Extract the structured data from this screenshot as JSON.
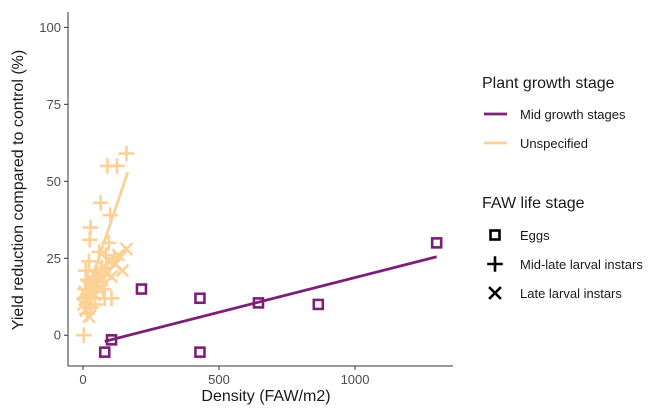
{
  "chart_data": {
    "type": "scatter",
    "xlabel": "Density (FAW/m2)",
    "ylabel": "Yield reduction compared to control (%)",
    "xlim": [
      -55,
      1360
    ],
    "ylim": [
      -10,
      105
    ],
    "x_ticks": [
      0,
      500,
      1000
    ],
    "y_ticks": [
      0,
      25,
      50,
      75,
      100
    ],
    "grid": false,
    "legend_placement": "right",
    "colors": {
      "mid_growth": "#7b1f78",
      "unspecified": "#fdd095"
    },
    "legends": {
      "color": {
        "title": "Plant growth stage",
        "entries": [
          {
            "key": "mid_growth",
            "label": "Mid growth stages"
          },
          {
            "key": "unspecified",
            "label": "Unspecified"
          }
        ]
      },
      "shape": {
        "title": "FAW life stage",
        "entries": [
          {
            "key": "square",
            "label": "Eggs"
          },
          {
            "key": "plus",
            "label": "Mid-late larval instars"
          },
          {
            "key": "cross",
            "label": "Late larval instars"
          }
        ]
      }
    },
    "series": [
      {
        "color_key": "mid_growth",
        "shape": "square",
        "points": [
          {
            "x": 80,
            "y": -5.5
          },
          {
            "x": 105,
            "y": -1.5
          },
          {
            "x": 215,
            "y": 15
          },
          {
            "x": 430,
            "y": 12
          },
          {
            "x": 430,
            "y": -5.5
          },
          {
            "x": 645,
            "y": 10.5
          },
          {
            "x": 865,
            "y": 10
          },
          {
            "x": 1300,
            "y": 30
          }
        ],
        "trend": {
          "x": [
            80,
            1300
          ],
          "y": [
            -2,
            25.5
          ]
        }
      },
      {
        "color_key": "unspecified",
        "shape": "plus",
        "points": [
          {
            "x": 3,
            "y": 0
          },
          {
            "x": 5,
            "y": 12
          },
          {
            "x": 8,
            "y": 15
          },
          {
            "x": 10,
            "y": 21
          },
          {
            "x": 12,
            "y": 10
          },
          {
            "x": 15,
            "y": 7
          },
          {
            "x": 18,
            "y": 18
          },
          {
            "x": 20,
            "y": 13
          },
          {
            "x": 22,
            "y": 24
          },
          {
            "x": 25,
            "y": 31
          },
          {
            "x": 28,
            "y": 35
          },
          {
            "x": 30,
            "y": 9
          },
          {
            "x": 35,
            "y": 15
          },
          {
            "x": 40,
            "y": 19
          },
          {
            "x": 45,
            "y": 10
          },
          {
            "x": 50,
            "y": 21
          },
          {
            "x": 55,
            "y": 16
          },
          {
            "x": 60,
            "y": 27
          },
          {
            "x": 65,
            "y": 43
          },
          {
            "x": 70,
            "y": 22
          },
          {
            "x": 75,
            "y": 15
          },
          {
            "x": 80,
            "y": 12
          },
          {
            "x": 85,
            "y": 26
          },
          {
            "x": 90,
            "y": 55
          },
          {
            "x": 95,
            "y": 30
          },
          {
            "x": 100,
            "y": 39
          },
          {
            "x": 105,
            "y": 12
          },
          {
            "x": 115,
            "y": 25
          },
          {
            "x": 125,
            "y": 55
          },
          {
            "x": 160,
            "y": 59
          }
        ],
        "trend": {
          "x": [
            0,
            165
          ],
          "y": [
            10,
            53
          ]
        }
      },
      {
        "color_key": "unspecified",
        "shape": "cross",
        "points": [
          {
            "x": 2,
            "y": 10
          },
          {
            "x": 6,
            "y": 14
          },
          {
            "x": 10,
            "y": 8
          },
          {
            "x": 14,
            "y": 12
          },
          {
            "x": 18,
            "y": 16
          },
          {
            "x": 22,
            "y": 6
          },
          {
            "x": 26,
            "y": 11
          },
          {
            "x": 32,
            "y": 14
          },
          {
            "x": 38,
            "y": 17
          },
          {
            "x": 44,
            "y": 13
          },
          {
            "x": 50,
            "y": 19
          },
          {
            "x": 56,
            "y": 15
          },
          {
            "x": 62,
            "y": 20
          },
          {
            "x": 70,
            "y": 18
          },
          {
            "x": 78,
            "y": 22
          },
          {
            "x": 86,
            "y": 20
          },
          {
            "x": 95,
            "y": 24
          },
          {
            "x": 105,
            "y": 19
          },
          {
            "x": 118,
            "y": 23
          },
          {
            "x": 130,
            "y": 26
          },
          {
            "x": 145,
            "y": 21
          },
          {
            "x": 160,
            "y": 28
          }
        ],
        "trend": {
          "x": [
            0,
            165
          ],
          "y": [
            12,
            28
          ]
        }
      }
    ]
  }
}
